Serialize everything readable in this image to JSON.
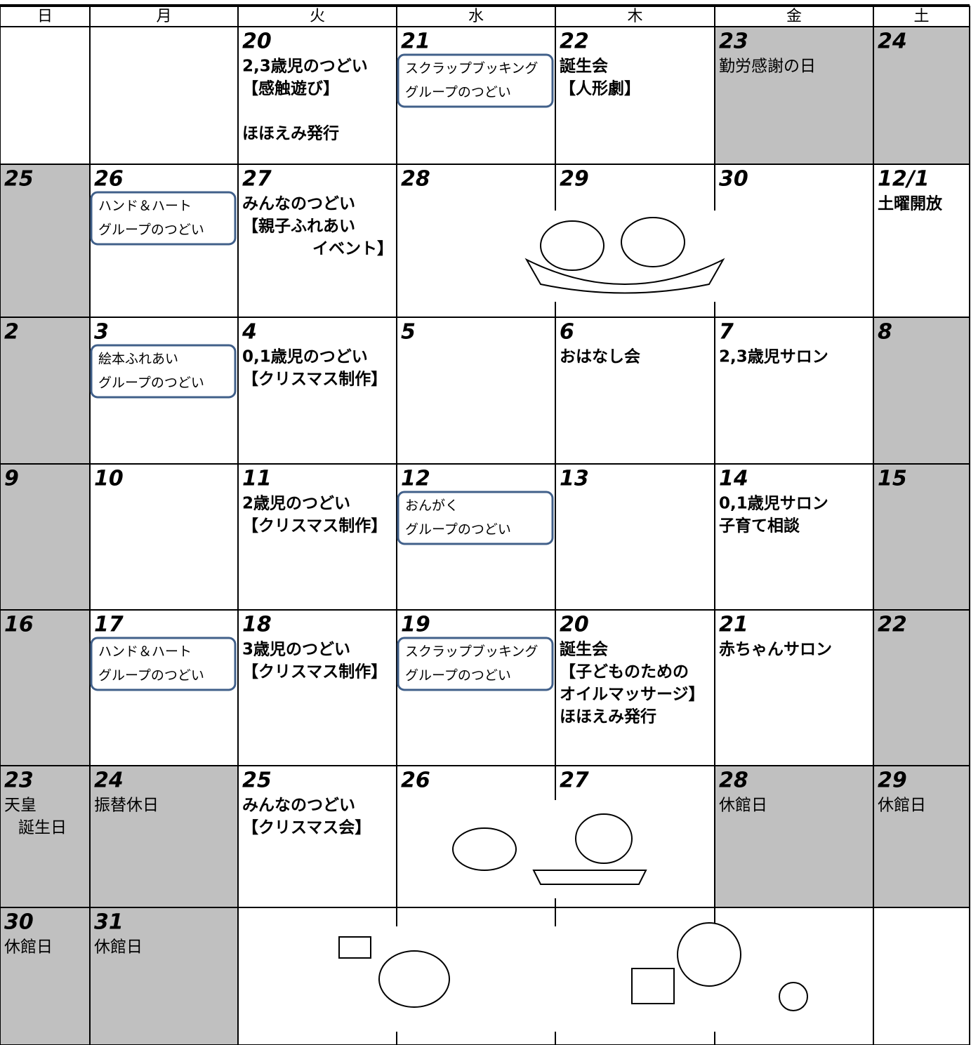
{
  "header": [
    "日",
    "月",
    "火",
    "水",
    "木",
    "金",
    "土"
  ],
  "weeks": [
    [
      {},
      {},
      {
        "date": "20",
        "lines": [
          "2,3歳児のつどい",
          "【感触遊び】",
          "",
          "ほほえみ発行"
        ]
      },
      {
        "date": "21",
        "box": [
          "スクラップブッキング",
          "グループのつどい"
        ]
      },
      {
        "date": "22",
        "lines": [
          "誕生会",
          "【人形劇】"
        ]
      },
      {
        "date": "23",
        "shaded": true,
        "lines": [
          "勤労感謝の日"
        ]
      },
      {
        "date": "24",
        "shaded": true
      }
    ],
    [
      {
        "date": "25",
        "shaded": true
      },
      {
        "date": "26",
        "box": [
          "ハンド＆ハート",
          "グループのつどい"
        ]
      },
      {
        "date": "27",
        "lines": [
          "みんなのつどい",
          "【親子ふれあい",
          "イベント】"
        ]
      },
      {
        "date": "28"
      },
      {
        "date": "29"
      },
      {
        "date": "30"
      },
      {
        "date": "12/1",
        "lines": [
          "土曜開放"
        ]
      }
    ],
    [
      {
        "date": "2",
        "shaded": true
      },
      {
        "date": "3",
        "box": [
          "絵本ふれあい",
          "グループのつどい"
        ]
      },
      {
        "date": "4",
        "lines": [
          "0,1歳児のつどい",
          "【クリスマス制作】"
        ]
      },
      {
        "date": "5"
      },
      {
        "date": "6",
        "lines": [
          "おはなし会"
        ]
      },
      {
        "date": "7",
        "lines": [
          "2,3歳児サロン"
        ]
      },
      {
        "date": "8",
        "shaded": true
      }
    ],
    [
      {
        "date": "9",
        "shaded": true
      },
      {
        "date": "10"
      },
      {
        "date": "11",
        "lines": [
          "2歳児のつどい",
          "【クリスマス制作】"
        ]
      },
      {
        "date": "12",
        "box": [
          "おんがく",
          "グループのつどい"
        ]
      },
      {
        "date": "13"
      },
      {
        "date": "14",
        "lines": [
          "0,1歳児サロン",
          "子育て相談"
        ]
      },
      {
        "date": "15",
        "shaded": true
      }
    ],
    [
      {
        "date": "16",
        "shaded": true
      },
      {
        "date": "17",
        "box": [
          "ハンド＆ハート",
          "グループのつどい"
        ]
      },
      {
        "date": "18",
        "lines": [
          "3歳児のつどい",
          "【クリスマス制作】"
        ]
      },
      {
        "date": "19",
        "box": [
          "スクラップブッキング",
          "グループのつどい"
        ]
      },
      {
        "date": "20",
        "lines": [
          "誕生会",
          "【子どものための",
          "オイルマッサージ】",
          "ほほえみ発行"
        ]
      },
      {
        "date": "21",
        "lines": [
          "赤ちゃんサロン"
        ]
      },
      {
        "date": "22",
        "shaded": true
      }
    ],
    [
      {
        "date": "23",
        "shaded": true,
        "lines": [
          "天皇",
          "誕生日"
        ]
      },
      {
        "date": "24",
        "shaded": true,
        "lines": [
          "振替休日"
        ]
      },
      {
        "date": "25",
        "lines": [
          "みんなのつどい",
          "【クリスマス会】"
        ]
      },
      {
        "date": "26"
      },
      {
        "date": "27"
      },
      {
        "date": "28",
        "shaded": true,
        "lines": [
          "休館日"
        ]
      },
      {
        "date": "29",
        "shaded": true,
        "lines": [
          "休館日"
        ]
      }
    ],
    [
      {
        "date": "30",
        "shaded": true,
        "lines": [
          "休館日"
        ]
      },
      {
        "date": "31",
        "shaded": true,
        "lines": [
          "休館日"
        ]
      },
      {},
      {},
      {},
      {},
      {}
    ]
  ]
}
